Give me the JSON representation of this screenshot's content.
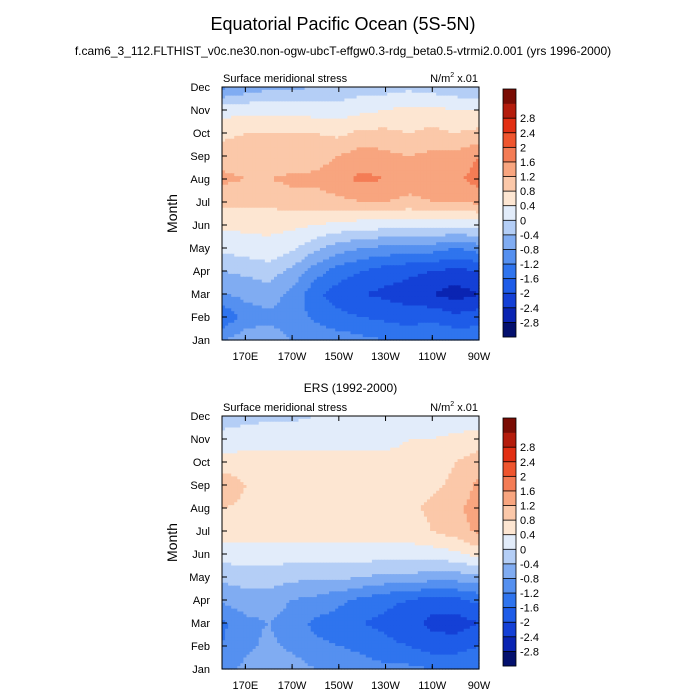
{
  "figure": {
    "title": "Equatorial Pacific Ocean (5S-5N)",
    "subtitle": "f.cam6_3_112.FLTHIST_v0c.ne30.non-ogw-ubcT-effgw0.3-rdg_beta0.5-vtrmi2.0.001 (yrs 1996-2000)"
  },
  "colorbar": {
    "levels": [
      -2.8,
      -2.4,
      -2.0,
      -1.6,
      -1.2,
      -0.8,
      -0.4,
      0,
      0.4,
      0.8,
      1.2,
      1.6,
      2.0,
      2.4,
      2.8
    ],
    "labels": [
      "-2.8",
      "-2.4",
      "-2",
      "-1.6",
      "-1.2",
      "-0.8",
      "-0.4",
      "0",
      "0.4",
      "0.8",
      "1.2",
      "1.6",
      "2",
      "2.4",
      "2.8"
    ],
    "colors": [
      "#04106e",
      "#0a24b2",
      "#1440d6",
      "#1e5ce8",
      "#2f74ee",
      "#5590f0",
      "#80acf2",
      "#b4cef6",
      "#e2ecfa",
      "#fde6d2",
      "#fbc8a9",
      "#f8a57f",
      "#f47c55",
      "#ef552e",
      "#e22f13",
      "#b41c0c",
      "#7a0c04"
    ]
  },
  "chart_data": [
    {
      "type": "heatmap",
      "panel_title": "",
      "left_label": "Surface meridional stress",
      "units_base": "N/m",
      "units_sup": "2",
      "units_scale": "x.01",
      "ylabel": "Month",
      "x_ticks": [
        {
          "lon": 170,
          "label": "170E"
        },
        {
          "lon": 190,
          "label": "170W"
        },
        {
          "lon": 210,
          "label": "150W"
        },
        {
          "lon": 230,
          "label": "130W"
        },
        {
          "lon": 250,
          "label": "110W"
        },
        {
          "lon": 270,
          "label": "90W"
        }
      ],
      "xlim": [
        160,
        270
      ],
      "y_ticks": [
        "Jan",
        "Feb",
        "Mar",
        "Apr",
        "May",
        "Jun",
        "Jul",
        "Aug",
        "Sep",
        "Oct",
        "Nov",
        "Dec"
      ],
      "lons": [
        160,
        170,
        180,
        190,
        200,
        210,
        220,
        230,
        240,
        250,
        260,
        270
      ],
      "months": [
        "Jan",
        "Feb",
        "Mar",
        "Apr",
        "May",
        "Jun",
        "Jul",
        "Aug",
        "Sep",
        "Oct",
        "Nov",
        "Dec"
      ],
      "values": [
        [
          -0.8,
          -0.6,
          -0.6,
          -0.8,
          -0.9,
          -1.0,
          -1.1,
          -1.2,
          -1.3,
          -1.2,
          -1.3,
          -1.3
        ],
        [
          -1.6,
          -1.0,
          -0.9,
          -1.0,
          -1.3,
          -1.5,
          -1.6,
          -1.7,
          -1.8,
          -1.7,
          -1.9,
          -1.8
        ],
        [
          -0.8,
          -0.7,
          -0.6,
          -0.9,
          -1.5,
          -1.8,
          -2.0,
          -2.1,
          -2.2,
          -2.4,
          -2.6,
          -2.4
        ],
        [
          -0.4,
          -0.3,
          -0.2,
          -0.5,
          -1.0,
          -1.4,
          -1.6,
          -1.8,
          -1.9,
          -2.0,
          -2.1,
          -2.0
        ],
        [
          0.1,
          0.2,
          0.3,
          0.1,
          -0.3,
          -0.6,
          -0.8,
          -0.9,
          -1.0,
          -1.0,
          -1.2,
          -1.0
        ],
        [
          0.5,
          0.5,
          0.5,
          0.5,
          0.4,
          0.3,
          0.2,
          0.2,
          0.1,
          0.2,
          0.1,
          0.2
        ],
        [
          0.9,
          0.9,
          0.9,
          1.0,
          1.0,
          1.1,
          1.2,
          1.2,
          1.1,
          1.2,
          1.2,
          1.3
        ],
        [
          1.3,
          1.2,
          1.2,
          1.3,
          1.3,
          1.5,
          1.7,
          1.6,
          1.4,
          1.4,
          1.5,
          1.8
        ],
        [
          1.0,
          1.0,
          0.9,
          0.9,
          1.0,
          1.2,
          1.4,
          1.3,
          1.2,
          1.3,
          1.3,
          1.6
        ],
        [
          0.7,
          0.8,
          0.8,
          0.8,
          0.8,
          0.7,
          0.9,
          0.9,
          0.8,
          0.9,
          0.8,
          0.9
        ],
        [
          0.2,
          0.3,
          0.3,
          0.3,
          0.2,
          0.2,
          0.3,
          0.4,
          0.5,
          0.5,
          0.4,
          0.4
        ],
        [
          -0.9,
          -0.7,
          -0.5,
          -0.5,
          -0.4,
          -0.3,
          -0.2,
          -0.2,
          -0.1,
          -0.2,
          -0.3,
          -0.4
        ]
      ]
    },
    {
      "type": "heatmap",
      "panel_title": "ERS (1992-2000)",
      "left_label": "Surface meridional stress",
      "units_base": "N/m",
      "units_sup": "2",
      "units_scale": "x.01",
      "ylabel": "Month",
      "x_ticks": [
        {
          "lon": 170,
          "label": "170E"
        },
        {
          "lon": 190,
          "label": "170W"
        },
        {
          "lon": 210,
          "label": "150W"
        },
        {
          "lon": 230,
          "label": "130W"
        },
        {
          "lon": 250,
          "label": "110W"
        },
        {
          "lon": 270,
          "label": "90W"
        }
      ],
      "xlim": [
        160,
        270
      ],
      "y_ticks": [
        "Jan",
        "Feb",
        "Mar",
        "Apr",
        "May",
        "Jun",
        "Jul",
        "Aug",
        "Sep",
        "Oct",
        "Nov",
        "Dec"
      ],
      "lons": [
        160,
        170,
        180,
        190,
        200,
        210,
        220,
        230,
        240,
        250,
        260,
        270
      ],
      "months": [
        "Jan",
        "Feb",
        "Mar",
        "Apr",
        "May",
        "Jun",
        "Jul",
        "Aug",
        "Sep",
        "Oct",
        "Nov",
        "Dec"
      ],
      "values": [
        [
          -1.0,
          -0.7,
          -0.5,
          -0.6,
          -0.8,
          -0.9,
          -1.0,
          -1.1,
          -1.1,
          -1.2,
          -1.2,
          -1.2
        ],
        [
          -1.2,
          -0.9,
          -0.7,
          -0.9,
          -1.1,
          -1.2,
          -1.3,
          -1.5,
          -1.6,
          -1.8,
          -1.8,
          -1.6
        ],
        [
          -1.3,
          -0.9,
          -0.8,
          -1.0,
          -1.3,
          -1.4,
          -1.6,
          -1.7,
          -1.9,
          -2.1,
          -2.2,
          -2.0
        ],
        [
          -0.7,
          -0.6,
          -0.6,
          -0.8,
          -0.9,
          -1.1,
          -1.3,
          -1.5,
          -1.6,
          -1.8,
          -1.7,
          -1.5
        ],
        [
          -0.3,
          -0.2,
          -0.2,
          -0.3,
          -0.3,
          -0.3,
          -0.4,
          -0.5,
          -0.5,
          -0.6,
          -0.6,
          -0.5
        ],
        [
          0.2,
          0.2,
          0.2,
          0.2,
          0.2,
          0.2,
          0.2,
          0.2,
          0.2,
          0.2,
          0.3,
          0.6
        ],
        [
          0.6,
          0.6,
          0.6,
          0.6,
          0.6,
          0.6,
          0.6,
          0.6,
          0.6,
          0.8,
          1.0,
          1.3
        ],
        [
          0.8,
          0.7,
          0.7,
          0.7,
          0.7,
          0.7,
          0.7,
          0.7,
          0.7,
          0.9,
          1.1,
          1.4
        ],
        [
          1.2,
          0.8,
          0.7,
          0.7,
          0.6,
          0.6,
          0.6,
          0.6,
          0.6,
          0.7,
          0.9,
          1.3
        ],
        [
          0.5,
          0.5,
          0.5,
          0.5,
          0.5,
          0.5,
          0.5,
          0.5,
          0.5,
          0.6,
          0.8,
          1.0
        ],
        [
          0.2,
          0.3,
          0.3,
          0.3,
          0.3,
          0.3,
          0.3,
          0.3,
          0.4,
          0.4,
          0.5,
          0.6
        ],
        [
          -0.3,
          -0.2,
          -0.1,
          -0.1,
          0.0,
          0.0,
          0.0,
          0.1,
          0.1,
          0.1,
          0.1,
          0.1
        ]
      ]
    }
  ]
}
